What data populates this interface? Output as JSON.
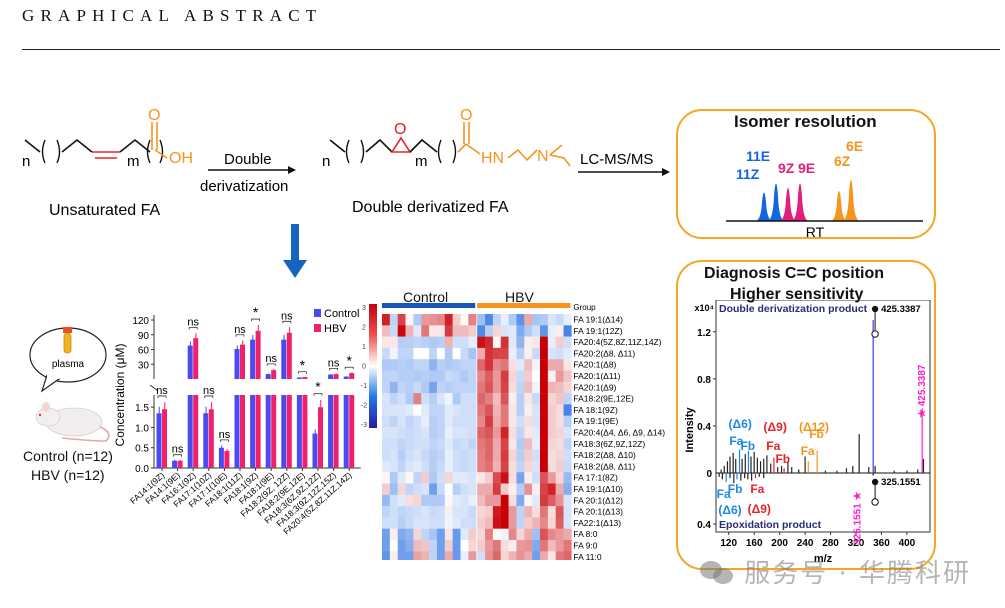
{
  "header": {
    "title": "GRAPHICAL ABSTRACT"
  },
  "scheme": {
    "fa_label": "Unsaturated  FA",
    "arrow1_top": "Double",
    "arrow1_bottom": "derivatization",
    "dd_label": "Double derivatized FA",
    "arrow2_label": "LC-MS/MS",
    "n": "n",
    "m": "m",
    "oh": "OH",
    "o": "O",
    "hn": "HN",
    "n_atom": "N",
    "colors": {
      "red": "#e8202a",
      "orange": "#f7941d",
      "blue": "#1565c0"
    }
  },
  "isomer_panel": {
    "title": "Isomer resolution",
    "axis_label": "RT",
    "peaks": [
      {
        "label": "11Z",
        "color": "#1565e0"
      },
      {
        "label": "11E",
        "color": "#1565e0"
      },
      {
        "label": "9Z",
        "color": "#e0207a"
      },
      {
        "label": "9E",
        "color": "#e0207a"
      },
      {
        "label": "6Z",
        "color": "#f7941d"
      },
      {
        "label": "6E",
        "color": "#f7941d"
      }
    ]
  },
  "samples": {
    "bubble_label": "plasma",
    "control": "Control (n=12)",
    "hbv": "HBV (n=12)"
  },
  "chart_data": [
    {
      "type": "bar",
      "title": "",
      "ylabel": "Concentration (μM)",
      "xlabel": "",
      "axis_break": true,
      "upper_ylim": [
        0,
        120
      ],
      "upper_ticks": [
        "30",
        "60",
        "90",
        "120"
      ],
      "lower_ylim": [
        0,
        1.8
      ],
      "lower_ticks": [
        "0.0",
        "0.5",
        "1.0",
        "1.5"
      ],
      "legend": {
        "placement": "top-right",
        "entries": [
          "Control",
          "HBV"
        ]
      },
      "categories": [
        "FA14:1(9Z)",
        "FA14:1(9E)",
        "FA16:1(9Z)",
        "FA17:1(10Z)",
        "FA17:1(10E)",
        "FA18:1(11Z)",
        "FA18:1(9Z)",
        "FA18:1(9E)",
        "FA18:2(9Z, 12Z)",
        "FA18:2(9E,12E)",
        "FA18:3(6Z,9Z,12Z)",
        "FA18:3(9Z,12Z,15Z)",
        "FA20:4(5Z,8Z,11Z,14Z)"
      ],
      "series": [
        {
          "name": "Control",
          "color": "#4a4af0",
          "values": [
            1.35,
            0.18,
            68,
            1.35,
            0.5,
            61,
            80,
            10,
            80,
            3,
            0.85,
            9,
            5
          ]
        },
        {
          "name": "HBV",
          "color": "#f0206a",
          "values": [
            1.45,
            0.18,
            83,
            1.45,
            0.42,
            70,
            98,
            18,
            94,
            4,
            1.5,
            10,
            12
          ]
        }
      ],
      "significance": [
        "ns",
        "ns",
        "ns",
        "ns",
        "ns",
        "ns",
        "*",
        "ns",
        "ns",
        "*",
        "*",
        "ns",
        "*"
      ]
    },
    {
      "type": "heatmap",
      "title": "",
      "groups": [
        {
          "name": "Control",
          "color": "#1756b8",
          "n": 12
        },
        {
          "name": "HBV",
          "color": "#f7941d",
          "n": 12
        }
      ],
      "group_label": "Group",
      "colorbar": {
        "range": [
          -3,
          3
        ],
        "ticks": [
          "3",
          "2",
          "1",
          "0",
          "-1",
          "-2",
          "-3"
        ]
      },
      "rows": [
        "FA 19:1(Δ14)",
        "FA 19:1(12Z)",
        "FA20:4(5Z,8Z,11Z,14Z)",
        "FA20:2(Δ8, Δ11)",
        "FA20:1(Δ8)",
        "FA20:1(Δ11)",
        "FA20:1(Δ9)",
        "FA18:2(9E,12E)",
        "FA 18:1(9Z)",
        "FA 19:1(9E)",
        "FA20:4(Δ4, Δ6, Δ9, Δ14)",
        "FA18:3(6Z,9Z,12Z)",
        "FA18:2(Δ8, Δ10)",
        "FA18:2(Δ8, Δ11)",
        "FA 17:1(8Z)",
        "FA 19:1(Δ10)",
        "FA 20:1(Δ12)",
        "FA 20:1(Δ13)",
        "FA22:1(Δ13)",
        "FA 8:0",
        "FA 9:0",
        "FA 11:0"
      ],
      "values": [
        [
          2.6,
          -0.8,
          2.2,
          0.1,
          -1.0,
          1.2,
          1.3,
          1.4,
          2.6,
          0.6,
          0.1,
          1.5,
          -1.2,
          -2.2,
          -0.8,
          -0.3,
          -1.0,
          -2.0,
          1.0,
          -1.1,
          -1.0,
          -0.5,
          -0.7,
          -0.3
        ],
        [
          0.8,
          -0.7,
          2.9,
          0.9,
          -0.4,
          1.6,
          0.3,
          0.3,
          2.3,
          0.8,
          0.8,
          0.6,
          -2.2,
          -0.9,
          0.5,
          -0.5,
          -0.4,
          -1.6,
          -1.0,
          -0.6,
          -2.0,
          -0.3,
          0.2,
          -2.3
        ],
        [
          0.3,
          0.3,
          -0.9,
          -0.9,
          -0.8,
          -0.9,
          -1.0,
          -0.9,
          0.9,
          -0.6,
          -0.6,
          -0.3,
          2.8,
          2.5,
          0.1,
          2.4,
          -0.4,
          -1.4,
          0.2,
          0.3,
          3.0,
          -0.3,
          0.6,
          -0.6
        ],
        [
          -0.7,
          -0.2,
          -0.8,
          -0.8,
          0.0,
          0.0,
          -0.8,
          0.0,
          -1.0,
          0.0,
          -0.7,
          -1.1,
          1.0,
          2.4,
          2.2,
          2.2,
          -0.3,
          -0.9,
          0.2,
          -0.7,
          3.0,
          -0.5,
          -0.6,
          -0.4
        ],
        [
          -1.0,
          -1.0,
          -0.9,
          -1.0,
          -0.8,
          -0.8,
          -1.4,
          -0.9,
          -1.0,
          -0.9,
          -0.8,
          -0.8,
          1.8,
          2.4,
          1.4,
          1.6,
          0.4,
          -0.4,
          0.8,
          -0.2,
          3.0,
          1.0,
          1.0,
          0.3
        ],
        [
          -0.8,
          -0.8,
          -0.9,
          -0.9,
          -1.0,
          -0.9,
          -1.0,
          -1.0,
          -0.7,
          -0.8,
          -1.0,
          -0.8,
          1.4,
          1.9,
          1.2,
          2.3,
          0.5,
          -0.7,
          0.6,
          0.0,
          3.0,
          0.2,
          1.2,
          0.7
        ],
        [
          -0.8,
          -1.4,
          -0.8,
          -0.9,
          -0.7,
          -1.0,
          -1.7,
          -0.8,
          -0.9,
          -0.8,
          -0.8,
          -0.8,
          1.6,
          2.0,
          1.2,
          2.2,
          0.4,
          -0.8,
          0.8,
          -0.2,
          3.0,
          0.9,
          0.8,
          0.5
        ],
        [
          -0.5,
          -0.8,
          -0.6,
          -1.0,
          1.5,
          -0.6,
          -0.9,
          -0.5,
          -0.2,
          -1.0,
          -0.6,
          -0.6,
          1.8,
          1.5,
          0.8,
          2.0,
          0.2,
          -0.9,
          0.3,
          -0.7,
          3.0,
          0.5,
          0.7,
          -0.8
        ],
        [
          -0.5,
          -0.5,
          -0.5,
          -0.4,
          0.0,
          -0.4,
          -0.8,
          -0.8,
          -0.4,
          -0.5,
          -0.6,
          -0.6,
          1.6,
          2.0,
          0.9,
          1.6,
          0.3,
          -0.9,
          0.2,
          -0.5,
          3.0,
          0.6,
          0.4,
          -2.3
        ],
        [
          -0.6,
          -0.8,
          -0.5,
          -0.8,
          -0.6,
          -0.3,
          -0.9,
          -0.8,
          -0.4,
          -0.6,
          -0.6,
          -0.6,
          1.4,
          2.3,
          1.0,
          1.6,
          0.3,
          -0.6,
          0.4,
          -0.5,
          3.0,
          0.6,
          0.4,
          -0.9
        ],
        [
          -0.5,
          -0.5,
          -0.6,
          -0.7,
          -0.6,
          -0.5,
          -0.9,
          -0.8,
          -0.3,
          -0.5,
          -0.5,
          -0.6,
          1.8,
          2.0,
          1.2,
          2.6,
          0.4,
          -0.8,
          0.3,
          -0.4,
          3.0,
          0.6,
          0.5,
          -0.5
        ],
        [
          -0.6,
          -0.6,
          -0.8,
          -0.7,
          -0.6,
          -0.6,
          -0.8,
          -0.7,
          -0.4,
          -0.7,
          -0.6,
          -0.8,
          1.6,
          1.8,
          1.0,
          2.2,
          0.3,
          -1.0,
          0.8,
          -0.3,
          3.0,
          0.5,
          0.4,
          -0.8
        ],
        [
          -0.6,
          -0.5,
          -0.9,
          -0.6,
          -0.5,
          -0.7,
          -0.9,
          -0.8,
          -0.3,
          -0.6,
          -0.7,
          -0.6,
          1.5,
          1.8,
          1.0,
          2.3,
          0.5,
          -0.9,
          0.6,
          -0.6,
          3.0,
          0.4,
          0.5,
          -0.6
        ],
        [
          -0.4,
          -0.5,
          -0.8,
          -0.5,
          -0.4,
          -0.6,
          -0.9,
          -0.7,
          -0.3,
          -0.6,
          -0.7,
          -0.6,
          1.5,
          1.7,
          0.9,
          2.2,
          0.4,
          -0.8,
          0.5,
          -0.5,
          3.0,
          0.4,
          0.6,
          -0.7
        ],
        [
          0.1,
          -1.0,
          -0.4,
          0.1,
          -0.8,
          0.6,
          -1.0,
          -0.6,
          0.5,
          -0.4,
          -0.4,
          -0.5,
          0.3,
          0.6,
          2.1,
          2.8,
          0.4,
          -1.7,
          0.2,
          -0.6,
          2.0,
          1.2,
          0.5,
          -1.3
        ],
        [
          0.6,
          -1.2,
          0.5,
          -0.8,
          -0.6,
          -0.5,
          -1.8,
          -0.7,
          0.0,
          -0.9,
          -0.6,
          -0.5,
          1.0,
          1.0,
          2.3,
          0.6,
          0.2,
          -0.9,
          1.3,
          0.2,
          2.2,
          2.6,
          1.0,
          -1.5
        ],
        [
          -1.3,
          -0.6,
          -0.4,
          0.4,
          0.5,
          -1.0,
          -1.0,
          -1.0,
          0.1,
          -0.4,
          -0.5,
          -0.3,
          0.8,
          1.2,
          1.2,
          3.0,
          0.4,
          -1.6,
          0.1,
          -0.4,
          2.3,
          1.9,
          1.3,
          -0.5
        ],
        [
          -0.8,
          -0.6,
          -0.8,
          -0.7,
          -0.6,
          -0.5,
          -0.7,
          -0.6,
          0.2,
          -0.5,
          -0.5,
          -0.7,
          0.5,
          0.6,
          2.7,
          3.0,
          1.2,
          -0.8,
          0.9,
          0.4,
          1.6,
          0.4,
          2.0,
          -0.5
        ],
        [
          -0.6,
          -0.6,
          -0.9,
          -0.7,
          -0.5,
          -0.5,
          -0.6,
          -0.6,
          -0.2,
          -0.4,
          -0.6,
          -0.6,
          0.6,
          0.8,
          2.8,
          3.0,
          1.2,
          -0.8,
          0.6,
          0.9,
          1.4,
          0.5,
          1.9,
          -0.5
        ],
        [
          -1.8,
          0.2,
          -1.6,
          -1.4,
          0.5,
          -0.8,
          -1.1,
          -1.8,
          0.3,
          -1.9,
          -0.4,
          0.6,
          0.5,
          1.5,
          0.1,
          -0.2,
          1.4,
          0.5,
          1.0,
          -1.2,
          2.0,
          1.4,
          1.2,
          1.0
        ],
        [
          -1.8,
          0.0,
          -1.8,
          -1.5,
          0.8,
          0.7,
          -0.8,
          -1.8,
          0.6,
          -1.9,
          0.0,
          0.5,
          0.6,
          1.2,
          1.6,
          0.4,
          0.2,
          1.2,
          1.3,
          -1.6,
          1.6,
          0.8,
          1.2,
          1.6
        ],
        [
          -2.0,
          0.2,
          -1.8,
          -1.8,
          1.1,
          0.9,
          -0.8,
          -1.8,
          1.0,
          -1.9,
          -0.3,
          1.2,
          -0.6,
          1.3,
          1.8,
          0.5,
          0.9,
          1.3,
          1.0,
          -1.8,
          1.0,
          0.3,
          1.6,
          1.8
        ]
      ]
    },
    {
      "type": "bar",
      "title": "Double derivatization product / Epoxidation product",
      "xlabel": "m/z",
      "ylabel": "Intensity",
      "y_multiplier": "x10⁴",
      "xlim": [
        100,
        430
      ],
      "x_ticks": [
        "120",
        "160",
        "200",
        "240",
        "280",
        "320",
        "360",
        "400"
      ],
      "upper_ticks": [
        "0.4",
        "0.8",
        "1.2"
      ],
      "lower_ticks": [
        "0.4"
      ],
      "zero_label": "0",
      "upper_label": "Double derivatization product",
      "lower_label": "Epoxidation product",
      "precursor_top": "425.3387",
      "precursor_bottom": "325.1551",
      "magenta_top": "425.3387",
      "magenta_bottom": "325.1551",
      "annotations": [
        {
          "text": "(Δ6)",
          "color": "#1e88e5"
        },
        {
          "text": "Fa",
          "color": "#1e88e5"
        },
        {
          "text": "Fb",
          "color": "#1e88e5"
        },
        {
          "text": "(Δ9)",
          "color": "#e8202a"
        },
        {
          "text": "Fa",
          "color": "#e8202a"
        },
        {
          "text": "Fb",
          "color": "#e8202a"
        },
        {
          "text": "(Δ12)",
          "color": "#f7941d"
        },
        {
          "text": "Fa",
          "color": "#f7941d"
        },
        {
          "text": "Fb",
          "color": "#f7941d"
        }
      ],
      "upper_peaks": [
        {
          "mz": 108,
          "i": 0.03
        },
        {
          "mz": 113,
          "i": 0.06
        },
        {
          "mz": 118,
          "i": 0.1
        },
        {
          "mz": 122,
          "i": 0.14
        },
        {
          "mz": 127,
          "i": 0.17
        },
        {
          "mz": 131,
          "i": 0.12
        },
        {
          "mz": 137,
          "i": 0.2,
          "c": "#1e88e5"
        },
        {
          "mz": 141,
          "i": 0.12
        },
        {
          "mz": 146,
          "i": 0.16
        },
        {
          "mz": 151,
          "i": 0.19,
          "c": "#1e88e5"
        },
        {
          "mz": 155,
          "i": 0.14
        },
        {
          "mz": 160,
          "i": 0.18
        },
        {
          "mz": 165,
          "i": 0.13
        },
        {
          "mz": 170,
          "i": 0.1
        },
        {
          "mz": 175,
          "i": 0.12
        },
        {
          "mz": 180,
          "i": 0.15
        },
        {
          "mz": 186,
          "i": 0.08
        },
        {
          "mz": 191,
          "i": 0.13,
          "c": "#e8202a"
        },
        {
          "mz": 197,
          "i": 0.05
        },
        {
          "mz": 203,
          "i": 0.06
        },
        {
          "mz": 207,
          "i": 0.04,
          "c": "#e8202a"
        },
        {
          "mz": 213,
          "i": 0.09
        },
        {
          "mz": 219,
          "i": 0.05
        },
        {
          "mz": 230,
          "i": 0.03
        },
        {
          "mz": 240,
          "i": 0.14
        },
        {
          "mz": 245,
          "i": 0.1,
          "c": "#f7941d"
        },
        {
          "mz": 259,
          "i": 0.19,
          "c": "#f7941d"
        },
        {
          "mz": 272,
          "i": 0.02
        },
        {
          "mz": 290,
          "i": 0.02
        },
        {
          "mz": 305,
          "i": 0.04
        },
        {
          "mz": 315,
          "i": 0.06
        },
        {
          "mz": 325,
          "i": 0.33
        },
        {
          "mz": 340,
          "i": 0.05
        },
        {
          "mz": 347,
          "i": 1.3,
          "c": "#3b3bf0"
        },
        {
          "mz": 350,
          "i": 0.06
        },
        {
          "mz": 380,
          "i": 0.02
        },
        {
          "mz": 400,
          "i": 0.02
        },
        {
          "mz": 417,
          "i": 0.03
        },
        {
          "mz": 424,
          "i": 0.55,
          "c": "#ff1fc8"
        },
        {
          "mz": 426,
          "i": 0.12
        }
      ],
      "lower_peaks": [
        {
          "mz": 105,
          "i": 0.03
        },
        {
          "mz": 110,
          "i": 0.05
        },
        {
          "mz": 116,
          "i": 0.07,
          "c": "#1e88e5"
        },
        {
          "mz": 122,
          "i": 0.04
        },
        {
          "mz": 128,
          "i": 0.08
        },
        {
          "mz": 133,
          "i": 0.05,
          "c": "#1e88e5"
        },
        {
          "mz": 139,
          "i": 0.06
        },
        {
          "mz": 145,
          "i": 0.04
        },
        {
          "mz": 150,
          "i": 0.05
        },
        {
          "mz": 156,
          "i": 0.06
        },
        {
          "mz": 162,
          "i": 0.04,
          "c": "#e8202a"
        },
        {
          "mz": 168,
          "i": 0.03
        },
        {
          "mz": 175,
          "i": 0.04
        },
        {
          "mz": 347,
          "i": 0.02
        }
      ]
    }
  ],
  "diagnosis_panel": {
    "title_line1": "Diagnosis C=C position",
    "title_line2": "Higher  sensitivity"
  },
  "watermark": {
    "text": "服务号 · 华腾科研"
  }
}
